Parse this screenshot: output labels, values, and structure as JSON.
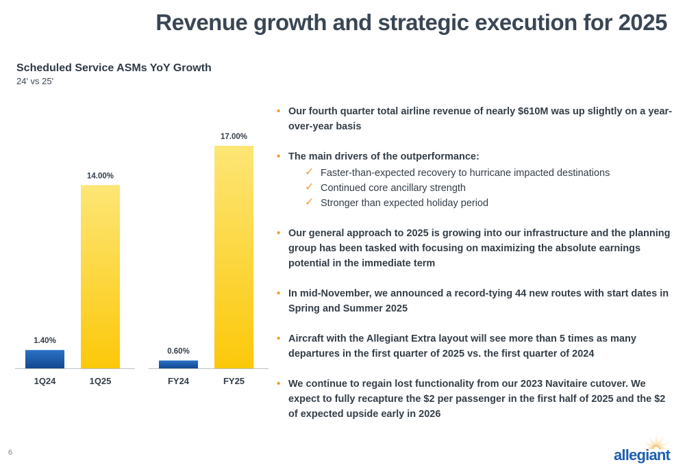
{
  "slide": {
    "title": "Revenue growth and strategic execution for 2025",
    "page_number": "6",
    "logo_text": "allegiant"
  },
  "chart_data": {
    "type": "bar",
    "title": "Scheduled Service ASMs YoY Growth",
    "subtitle": "24' vs 25'",
    "groups": [
      {
        "bars": [
          {
            "category": "1Q24",
            "value": 1.4,
            "label": "1.40%",
            "color": "#1f5fae"
          },
          {
            "category": "1Q25",
            "value": 14.0,
            "label": "14.00%",
            "color": "#fcd63b"
          }
        ]
      },
      {
        "bars": [
          {
            "category": "FY24",
            "value": 0.6,
            "label": "0.60%",
            "color": "#1f5fae"
          },
          {
            "category": "FY25",
            "value": 17.0,
            "label": "17.00%",
            "color": "#fcd63b"
          }
        ]
      }
    ],
    "ylim": [
      0,
      17
    ],
    "grid": false,
    "legend": "none"
  },
  "bullets": [
    {
      "text": "Our fourth quarter total airline revenue of nearly $610M was up slightly on a year-over-year basis"
    },
    {
      "text": "The main drivers of the outperformance:",
      "checks": [
        "Faster-than-expected recovery to hurricane impacted destinations",
        "Continued core ancillary strength",
        "Stronger than expected holiday period"
      ]
    },
    {
      "text": "Our general approach to 2025 is growing into our infrastructure and the planning group has been tasked with focusing on maximizing the absolute earnings potential in the immediate term"
    },
    {
      "text": "In mid-November, we announced a record-tying 44 new routes with start dates in Spring and Summer 2025"
    },
    {
      "text": "Aircraft with the Allegiant Extra layout will see more than 5 times as many departures in the first quarter of 2025 vs. the first quarter of 2024"
    },
    {
      "text": "We continue to regain lost functionality from our 2023 Navitaire cutover. We expect to fully recapture the $2 per passenger in the first half of 2025 and the $2 of expected upside early in 2026"
    }
  ],
  "colors": {
    "title": "#3a4654",
    "bullet_accent": "#f29a2e",
    "bar_blue": "#1f5fae",
    "bar_yellow": "#fcd63b",
    "logo_blue": "#1f5fae",
    "logo_sun": "#f5a623"
  },
  "icons": {
    "bullet": "bullet-dot-icon",
    "check": "checkmark-icon",
    "logo": "allegiant-sun-logo"
  }
}
